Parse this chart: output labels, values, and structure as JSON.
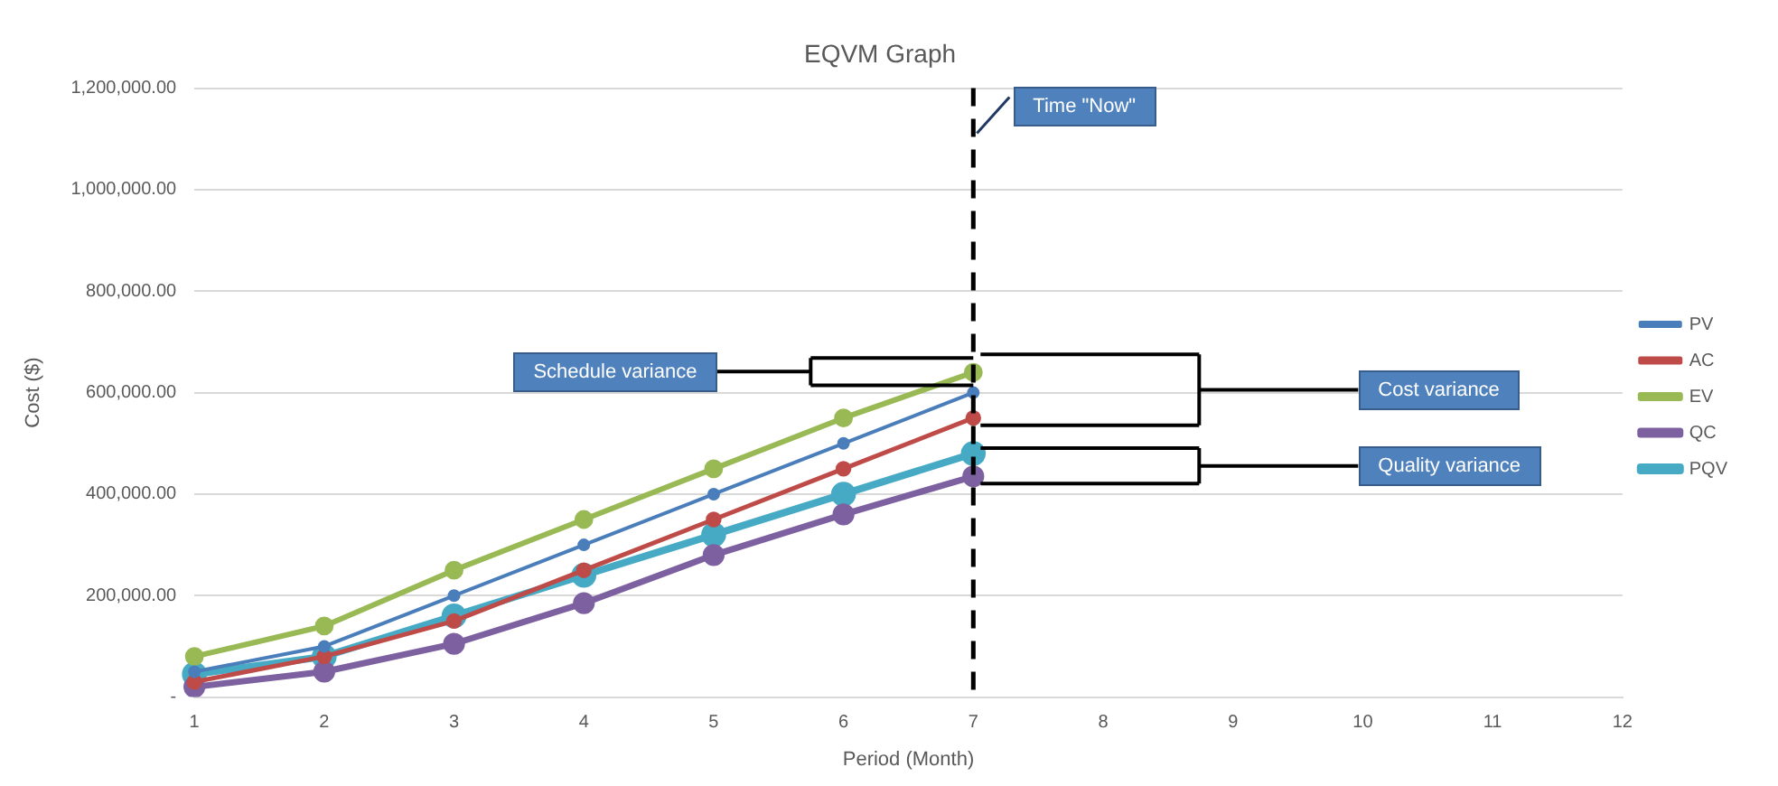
{
  "chart_data": {
    "type": "line",
    "title": "EQVM Graph",
    "xlabel": "Period (Month)",
    "ylabel": "Cost ($)",
    "categories": [
      "1",
      "2",
      "3",
      "4",
      "5",
      "6",
      "7",
      "8",
      "9",
      "10",
      "11",
      "12"
    ],
    "series": [
      {
        "name": "PV",
        "color": "#4a7ebb",
        "values": [
          50000,
          100000,
          200000,
          300000,
          400000,
          500000,
          600000,
          null,
          null,
          null,
          null,
          null
        ]
      },
      {
        "name": "AC",
        "color": "#be4b48",
        "values": [
          30000,
          80000,
          150000,
          250000,
          350000,
          450000,
          550000,
          null,
          null,
          null,
          null,
          null
        ]
      },
      {
        "name": "EV",
        "color": "#98b954",
        "values": [
          80000,
          140000,
          250000,
          350000,
          450000,
          550000,
          640000,
          null,
          null,
          null,
          null,
          null
        ]
      },
      {
        "name": "QC",
        "color": "#7d60a0",
        "values": [
          20000,
          50000,
          105000,
          185000,
          280000,
          360000,
          435000,
          null,
          null,
          null,
          null,
          null
        ]
      },
      {
        "name": "PQV",
        "color": "#46aac5",
        "values": [
          45000,
          80000,
          160000,
          240000,
          320000,
          400000,
          480000,
          null,
          null,
          null,
          null,
          null
        ]
      }
    ],
    "ylim": [
      0,
      1200000
    ],
    "yticks": [
      {
        "value": 0,
        "label": "-"
      },
      {
        "value": 200000,
        "label": "200,000.00"
      },
      {
        "value": 400000,
        "label": "400,000.00"
      },
      {
        "value": 600000,
        "label": "600,000.00"
      },
      {
        "value": 800000,
        "label": "800,000.00"
      },
      {
        "value": 1000000,
        "label": "1,000,000.00"
      },
      {
        "value": 1200000,
        "label": "1,200,000.00"
      }
    ],
    "ref_lines": [
      {
        "axis": "x",
        "value": "7",
        "color": "#000000",
        "line_style": "dashed"
      }
    ],
    "annotations": [
      "Time \"Now\"",
      "Schedule variance",
      "Cost variance",
      "Quality variance"
    ],
    "grid": "y",
    "legend": "right",
    "marker": "circle",
    "line_style": "solid"
  }
}
